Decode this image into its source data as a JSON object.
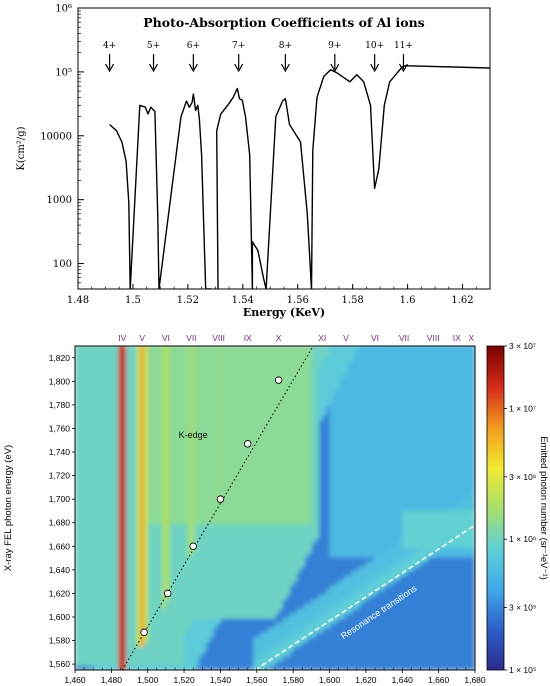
{
  "chart_data": [
    {
      "type": "line",
      "title": "Photo-Absorption Coefficients of Al ions",
      "xlabel": "Energy (KeV)",
      "ylabel": "K(cm²/g)",
      "yscale": "log",
      "xlim": [
        1.48,
        1.63
      ],
      "ylim": [
        40,
        1000000
      ],
      "x_ticks": [
        "1.48",
        "1.5",
        "1.52",
        "1.54",
        "1.56",
        "1.58",
        "1.6",
        "1.62"
      ],
      "y_ticks": [
        {
          "v": 1000000,
          "label": "10⁶"
        },
        {
          "v": 100000,
          "label": "10⁵"
        },
        {
          "v": 10000,
          "label": "10000"
        },
        {
          "v": 1000,
          "label": "1000"
        },
        {
          "v": 100,
          "label": "100"
        }
      ],
      "annotations": [
        {
          "label": "4+",
          "x": 1.4915
        },
        {
          "label": "5+",
          "x": 1.5075
        },
        {
          "label": "6+",
          "x": 1.522
        },
        {
          "label": "7+",
          "x": 1.5385
        },
        {
          "label": "8+",
          "x": 1.5555
        },
        {
          "label": "9+",
          "x": 1.5735
        },
        {
          "label": "10+",
          "x": 1.588
        },
        {
          "label": "11+",
          "x": 1.5985
        }
      ],
      "series": [
        {
          "values": [
            [
              1.4915,
              15000
            ],
            [
              1.494,
              12000
            ],
            [
              1.496,
              8000
            ],
            [
              1.4975,
              4000
            ],
            [
              1.4985,
              900
            ],
            [
              1.499,
              40
            ],
            [
              1.5025,
              30000
            ],
            [
              1.5045,
              28000
            ],
            [
              1.5055,
              22000
            ],
            [
              1.5065,
              28000
            ],
            [
              1.508,
              24000
            ],
            [
              1.509,
              600
            ],
            [
              1.5095,
              40
            ],
            [
              1.5175,
              20000
            ],
            [
              1.5195,
              35000
            ],
            [
              1.5205,
              28000
            ],
            [
              1.5215,
              33000
            ],
            [
              1.522,
              45000
            ],
            [
              1.5228,
              25000
            ],
            [
              1.5236,
              30000
            ],
            [
              1.5242,
              18000
            ],
            [
              1.525,
              5000
            ],
            [
              1.526,
              200
            ],
            [
              1.5265,
              40
            ],
            [
              1.5285,
              40
            ],
            [
              1.531,
              30
            ],
            [
              1.5305,
              12000
            ],
            [
              1.532,
              22000
            ],
            [
              1.5345,
              30000
            ],
            [
              1.5365,
              40000
            ],
            [
              1.538,
              55000
            ],
            [
              1.5388,
              38000
            ],
            [
              1.5398,
              36000
            ],
            [
              1.541,
              20000
            ],
            [
              1.5425,
              5000
            ],
            [
              1.5435,
              40
            ],
            [
              1.5435,
              220
            ],
            [
              1.5455,
              160
            ],
            [
              1.5475,
              60
            ],
            [
              1.5485,
              40
            ],
            [
              1.552,
              20000
            ],
            [
              1.5545,
              35000
            ],
            [
              1.5555,
              38000
            ],
            [
              1.557,
              15000
            ],
            [
              1.561,
              8000
            ],
            [
              1.5635,
              600
            ],
            [
              1.565,
              40
            ],
            [
              1.5655,
              6000
            ],
            [
              1.567,
              40000
            ],
            [
              1.5695,
              85000
            ],
            [
              1.572,
              108000
            ],
            [
              1.5745,
              95000
            ],
            [
              1.579,
              70000
            ],
            [
              1.5815,
              90000
            ],
            [
              1.584,
              70000
            ],
            [
              1.5865,
              30000
            ],
            [
              1.588,
              1500
            ],
            [
              1.5895,
              3000
            ],
            [
              1.5915,
              30000
            ],
            [
              1.5935,
              70000
            ],
            [
              1.5965,
              100000
            ],
            [
              1.5985,
              125000
            ],
            [
              1.63,
              115000
            ]
          ]
        }
      ]
    },
    {
      "type": "heatmap",
      "xlabel": "Emitted photon energy (eV)",
      "ylabel": "X-ray FEL photon energy (eV)",
      "xlim": [
        1460,
        1680
      ],
      "ylim": [
        1555,
        1830
      ],
      "x_ticks": [
        "1,460",
        "1,480",
        "1,500",
        "1,520",
        "1,540",
        "1,560",
        "1,580",
        "1,600",
        "1,620",
        "1,640",
        "1,660",
        "1,680"
      ],
      "y_ticks": [
        "1,560",
        "1,580",
        "1,600",
        "1,620",
        "1,640",
        "1,660",
        "1,680",
        "1,700",
        "1,720",
        "1,740",
        "1,760",
        "1,780",
        "1,800",
        "1,820"
      ],
      "top_labels": [
        {
          "label": "IV",
          "x": 1486
        },
        {
          "label": "V",
          "x": 1497
        },
        {
          "label": "VI",
          "x": 1510
        },
        {
          "label": "VII",
          "x": 1524
        },
        {
          "label": "VIII",
          "x": 1539
        },
        {
          "label": "IX",
          "x": 1555
        },
        {
          "label": "X",
          "x": 1572
        },
        {
          "label": "XI",
          "x": 1596
        },
        {
          "label": "V",
          "x": 1609
        },
        {
          "label": "VI",
          "x": 1625
        },
        {
          "label": "VII",
          "x": 1641
        },
        {
          "label": "VIII",
          "x": 1657
        },
        {
          "label": "IX",
          "x": 1670
        },
        {
          "label": "X",
          "x": 1678
        }
      ],
      "kedge_points": [
        [
          1498,
          1587
        ],
        [
          1511,
          1620
        ],
        [
          1525,
          1660
        ],
        [
          1540,
          1700
        ],
        [
          1555,
          1747
        ],
        [
          1572,
          1801
        ]
      ],
      "kedge_label": "K-edge",
      "resonance_label": "Resonance transitions",
      "colorbar": {
        "label": "Emitted photon number (sr⁻¹eV⁻¹)",
        "ticks": [
          {
            "v": 30000000,
            "label": "3 × 10⁷"
          },
          {
            "v": 10000000,
            "label": "1 × 10⁷"
          },
          {
            "v": 3000000,
            "label": "3 × 10⁶"
          },
          {
            "v": 1000000,
            "label": "1 × 10⁶"
          },
          {
            "v": 300000,
            "label": "3 × 10⁵"
          },
          {
            "v": 100000,
            "label": "1 × 10⁵"
          }
        ],
        "colors": [
          "#2b2a8c",
          "#2d5fc9",
          "#3fa9e8",
          "#5fd0d8",
          "#a8e06a",
          "#f1ea2e",
          "#f29a1e",
          "#d42a18",
          "#7a0000"
        ]
      }
    }
  ]
}
